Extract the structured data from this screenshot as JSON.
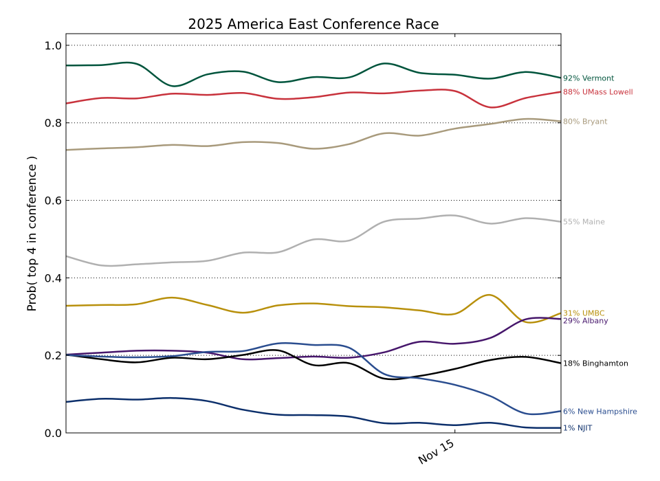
{
  "chart_data": {
    "type": "line",
    "title": "2025 America East Conference Race",
    "ylabel": "Prob( top 4 in conference )",
    "xlabel": "",
    "ylim": [
      0,
      1.03
    ],
    "yticks": [
      0.0,
      0.2,
      0.4,
      0.6,
      0.8,
      1.0
    ],
    "ytick_labels": [
      "0.0",
      "0.2",
      "0.4",
      "0.6",
      "0.8",
      "1.0"
    ],
    "xlim": [
      0,
      14
    ],
    "xticks": [
      {
        "x": 11,
        "label": "Nov 15"
      }
    ],
    "grid": "y-dotted",
    "x": [
      0,
      1,
      2,
      3,
      4,
      5,
      6,
      7,
      8,
      9,
      10,
      11,
      12,
      13,
      14
    ],
    "series": [
      {
        "name": "Vermont",
        "label": "92% Vermont",
        "color": "#00543c",
        "values": [
          0.948,
          0.949,
          0.952,
          0.895,
          0.925,
          0.932,
          0.905,
          0.918,
          0.917,
          0.953,
          0.929,
          0.924,
          0.914,
          0.931,
          0.916
        ]
      },
      {
        "name": "UMass Lowell",
        "label": "88% UMass Lowell",
        "color": "#c8323c",
        "values": [
          0.85,
          0.864,
          0.863,
          0.875,
          0.872,
          0.877,
          0.862,
          0.866,
          0.878,
          0.876,
          0.883,
          0.882,
          0.84,
          0.864,
          0.88
        ]
      },
      {
        "name": "Bryant",
        "label": "80% Bryant",
        "color": "#a89a7c",
        "values": [
          0.73,
          0.734,
          0.737,
          0.743,
          0.74,
          0.75,
          0.748,
          0.733,
          0.745,
          0.773,
          0.767,
          0.785,
          0.797,
          0.81,
          0.804
        ]
      },
      {
        "name": "Maine",
        "label": "55% Maine",
        "color": "#b0b0b0",
        "values": [
          0.456,
          0.432,
          0.435,
          0.44,
          0.444,
          0.465,
          0.466,
          0.499,
          0.496,
          0.545,
          0.553,
          0.561,
          0.54,
          0.554,
          0.545
        ]
      },
      {
        "name": "UMBC",
        "label": "31% UMBC",
        "color": "#b8900c",
        "values": [
          0.328,
          0.33,
          0.332,
          0.349,
          0.33,
          0.31,
          0.329,
          0.334,
          0.327,
          0.324,
          0.316,
          0.307,
          0.356,
          0.286,
          0.309
        ]
      },
      {
        "name": "Albany",
        "label": "29% Albany",
        "color": "#46166b",
        "values": [
          0.202,
          0.207,
          0.212,
          0.212,
          0.207,
          0.19,
          0.193,
          0.197,
          0.194,
          0.208,
          0.235,
          0.23,
          0.245,
          0.293,
          0.294
        ]
      },
      {
        "name": "Binghamton",
        "label": "18% Binghamton",
        "color": "#000000",
        "values": [
          0.202,
          0.19,
          0.182,
          0.194,
          0.19,
          0.201,
          0.213,
          0.175,
          0.18,
          0.14,
          0.147,
          0.165,
          0.188,
          0.196,
          0.18
        ]
      },
      {
        "name": "New Hampshire",
        "label": "6% New Hampshire",
        "color": "#2a4d8f",
        "values": [
          0.201,
          0.197,
          0.195,
          0.198,
          0.209,
          0.211,
          0.231,
          0.227,
          0.22,
          0.152,
          0.141,
          0.124,
          0.095,
          0.05,
          0.056
        ]
      },
      {
        "name": "NJIT",
        "label": "1% NJIT",
        "color": "#0c2f6b",
        "values": [
          0.08,
          0.088,
          0.086,
          0.09,
          0.082,
          0.06,
          0.047,
          0.046,
          0.042,
          0.025,
          0.026,
          0.02,
          0.026,
          0.014,
          0.013
        ]
      }
    ]
  }
}
